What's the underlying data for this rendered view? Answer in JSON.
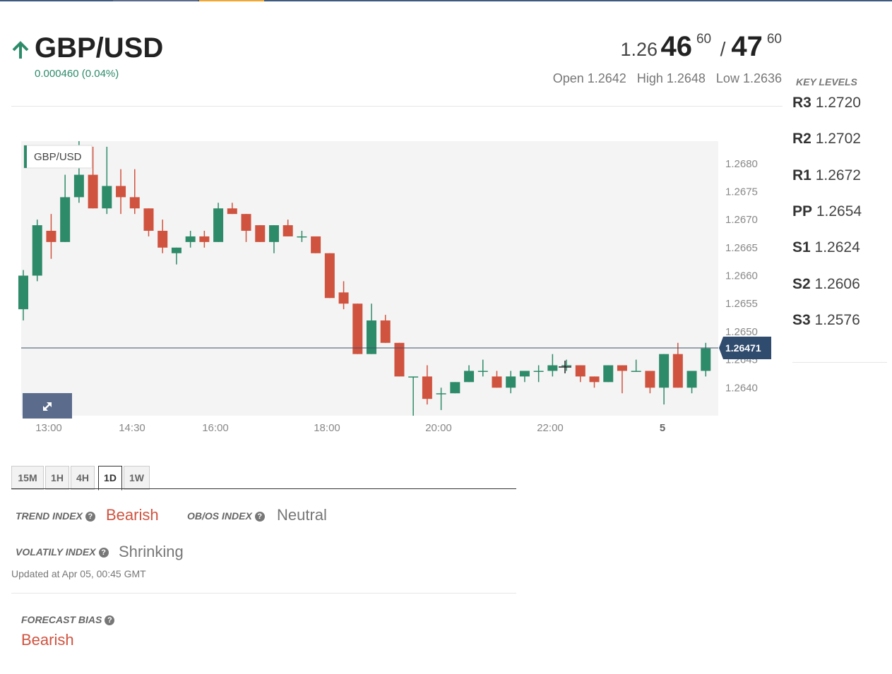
{
  "header": {
    "pair": "GBP/USD",
    "change": "0.000460 (0.04%)",
    "bid_prefix": "1.26",
    "bid_big": "46",
    "bid_sup": "60",
    "separator": "/",
    "ask_big": "47",
    "ask_sup": "60",
    "open": "Open 1.2642",
    "high": "High 1.2648",
    "low": "Low 1.2636",
    "up_color": "#2e8b6a",
    "arrow_icon": "arrow-up-icon"
  },
  "key_levels": {
    "title": "KEY LEVELS",
    "levels": [
      {
        "name": "R3",
        "value": "1.2720"
      },
      {
        "name": "R2",
        "value": "1.2702"
      },
      {
        "name": "R1",
        "value": "1.2672"
      },
      {
        "name": "PP",
        "value": "1.2654"
      },
      {
        "name": "S1",
        "value": "1.2624"
      },
      {
        "name": "S2",
        "value": "1.2606"
      },
      {
        "name": "S3",
        "value": "1.2576"
      }
    ]
  },
  "chart_data": {
    "type": "candlestick",
    "legend": "GBP/USD",
    "up_color": "#2e8b6a",
    "down_color": "#d0533f",
    "ylim": [
      1.2635,
      1.2684
    ],
    "y_ticks": [
      "1.2680",
      "1.2675",
      "1.2670",
      "1.2665",
      "1.2660",
      "1.2655",
      "1.2650",
      "1.2645",
      "1.2640"
    ],
    "x_labels": [
      "13:00",
      "14:30",
      "16:00",
      "18:00",
      "20:00",
      "22:00",
      "5"
    ],
    "current_price": "1.26471",
    "current_price_value": 1.26471,
    "candles": [
      {
        "o": 1.2654,
        "h": 1.2661,
        "l": 1.2652,
        "c": 1.266
      },
      {
        "o": 1.266,
        "h": 1.267,
        "l": 1.2659,
        "c": 1.2669
      },
      {
        "o": 1.2668,
        "h": 1.2671,
        "l": 1.2663,
        "c": 1.2666
      },
      {
        "o": 1.2666,
        "h": 1.2678,
        "l": 1.2666,
        "c": 1.2674
      },
      {
        "o": 1.2674,
        "h": 1.2684,
        "l": 1.2673,
        "c": 1.2678
      },
      {
        "o": 1.2678,
        "h": 1.2683,
        "l": 1.2672,
        "c": 1.2672
      },
      {
        "o": 1.2672,
        "h": 1.2683,
        "l": 1.2671,
        "c": 1.2676
      },
      {
        "o": 1.2676,
        "h": 1.2679,
        "l": 1.2671,
        "c": 1.2674
      },
      {
        "o": 1.2674,
        "h": 1.2679,
        "l": 1.2671,
        "c": 1.2672
      },
      {
        "o": 1.2672,
        "h": 1.2672,
        "l": 1.2667,
        "c": 1.2668
      },
      {
        "o": 1.2668,
        "h": 1.267,
        "l": 1.2664,
        "c": 1.2665
      },
      {
        "o": 1.2664,
        "h": 1.2665,
        "l": 1.2662,
        "c": 1.2665
      },
      {
        "o": 1.2666,
        "h": 1.2668,
        "l": 1.2665,
        "c": 1.2667
      },
      {
        "o": 1.2667,
        "h": 1.2668,
        "l": 1.2665,
        "c": 1.2666
      },
      {
        "o": 1.2666,
        "h": 1.2673,
        "l": 1.2666,
        "c": 1.2672
      },
      {
        "o": 1.2672,
        "h": 1.2673,
        "l": 1.2671,
        "c": 1.2671
      },
      {
        "o": 1.2671,
        "h": 1.2671,
        "l": 1.2666,
        "c": 1.2668
      },
      {
        "o": 1.2669,
        "h": 1.2669,
        "l": 1.2666,
        "c": 1.2666
      },
      {
        "o": 1.2666,
        "h": 1.2669,
        "l": 1.2664,
        "c": 1.2669
      },
      {
        "o": 1.2669,
        "h": 1.267,
        "l": 1.2667,
        "c": 1.2667
      },
      {
        "o": 1.2667,
        "h": 1.2668,
        "l": 1.2666,
        "c": 1.2667
      },
      {
        "o": 1.2667,
        "h": 1.2667,
        "l": 1.2664,
        "c": 1.2664
      },
      {
        "o": 1.2664,
        "h": 1.2664,
        "l": 1.2656,
        "c": 1.2656
      },
      {
        "o": 1.2657,
        "h": 1.2659,
        "l": 1.2654,
        "c": 1.2655
      },
      {
        "o": 1.2655,
        "h": 1.2655,
        "l": 1.2646,
        "c": 1.2646
      },
      {
        "o": 1.2646,
        "h": 1.2655,
        "l": 1.2646,
        "c": 1.2652
      },
      {
        "o": 1.2652,
        "h": 1.2653,
        "l": 1.2648,
        "c": 1.2648
      },
      {
        "o": 1.2648,
        "h": 1.2648,
        "l": 1.2642,
        "c": 1.2642
      },
      {
        "o": 1.2642,
        "h": 1.2642,
        "l": 1.2635,
        "c": 1.2642
      },
      {
        "o": 1.2642,
        "h": 1.2644,
        "l": 1.2637,
        "c": 1.2638
      },
      {
        "o": 1.2639,
        "h": 1.264,
        "l": 1.2636,
        "c": 1.2639
      },
      {
        "o": 1.2639,
        "h": 1.2641,
        "l": 1.2639,
        "c": 1.2641
      },
      {
        "o": 1.2641,
        "h": 1.2644,
        "l": 1.2641,
        "c": 1.2643
      },
      {
        "o": 1.2643,
        "h": 1.2645,
        "l": 1.2642,
        "c": 1.2643
      },
      {
        "o": 1.2642,
        "h": 1.2643,
        "l": 1.264,
        "c": 1.264
      },
      {
        "o": 1.264,
        "h": 1.2643,
        "l": 1.2639,
        "c": 1.2642
      },
      {
        "o": 1.2642,
        "h": 1.2643,
        "l": 1.2641,
        "c": 1.2643
      },
      {
        "o": 1.2643,
        "h": 1.2644,
        "l": 1.2641,
        "c": 1.2643
      },
      {
        "o": 1.2643,
        "h": 1.2646,
        "l": 1.2642,
        "c": 1.2644
      },
      {
        "o": 1.2644,
        "h": 1.2645,
        "l": 1.2643,
        "c": 1.2644
      },
      {
        "o": 1.2644,
        "h": 1.2644,
        "l": 1.2641,
        "c": 1.2642
      },
      {
        "o": 1.2642,
        "h": 1.2642,
        "l": 1.264,
        "c": 1.2641
      },
      {
        "o": 1.2641,
        "h": 1.2644,
        "l": 1.2641,
        "c": 1.2644
      },
      {
        "o": 1.2644,
        "h": 1.2644,
        "l": 1.2639,
        "c": 1.2643
      },
      {
        "o": 1.2643,
        "h": 1.2645,
        "l": 1.2643,
        "c": 1.2643
      },
      {
        "o": 1.2643,
        "h": 1.2643,
        "l": 1.2639,
        "c": 1.264
      },
      {
        "o": 1.264,
        "h": 1.2646,
        "l": 1.2637,
        "c": 1.2646
      },
      {
        "o": 1.2646,
        "h": 1.2648,
        "l": 1.264,
        "c": 1.264
      },
      {
        "o": 1.264,
        "h": 1.2643,
        "l": 1.2639,
        "c": 1.2643
      },
      {
        "o": 1.2643,
        "h": 1.2648,
        "l": 1.2642,
        "c": 1.2647
      }
    ]
  },
  "timeframes": {
    "tabs": [
      "15M",
      "1H",
      "4H",
      "1D",
      "1W"
    ],
    "active": "1D"
  },
  "indicators": {
    "trend_label": "TREND INDEX",
    "trend_value": "Bearish",
    "obos_label": "OB/OS INDEX",
    "obos_value": "Neutral",
    "volatility_label": "VOLATILY INDEX",
    "volatility_value": "Shrinking",
    "updated": "Updated at Apr 05, 00:45 GMT",
    "forecast_label": "FORECAST BIAS",
    "forecast_value": "Bearish",
    "help_icon": "question-circle-icon",
    "bear_color": "#d0533f"
  }
}
